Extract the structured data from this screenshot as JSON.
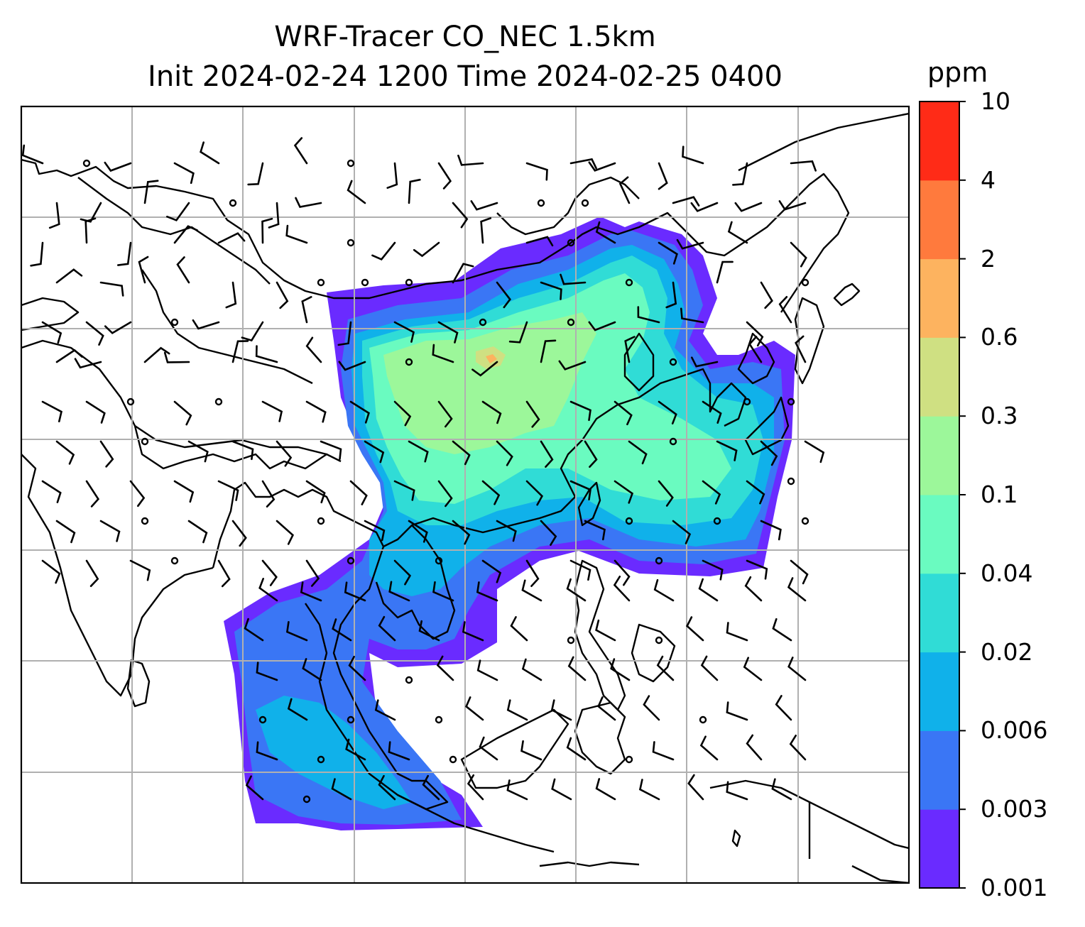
{
  "title_line1": "WRF-Tracer CO_NEC 1.5km",
  "title_line2": "Init 2024-02-24 1200 Time 2024-02-25 0400",
  "colorbar": {
    "unit": "ppm",
    "levels": [
      "0.001",
      "0.003",
      "0.006",
      "0.02",
      "0.04",
      "0.1",
      "0.3",
      "0.6",
      "2",
      "4",
      "10"
    ],
    "colors": [
      "#6a2bff",
      "#3a76f5",
      "#10b1ea",
      "#30dcd6",
      "#6afbc0",
      "#9cf79a",
      "#cfe082",
      "#fdb35f",
      "#ff7a3d",
      "#ff2b17"
    ]
  },
  "map": {
    "overlay": "wind-barbs",
    "gridlines": true
  }
}
